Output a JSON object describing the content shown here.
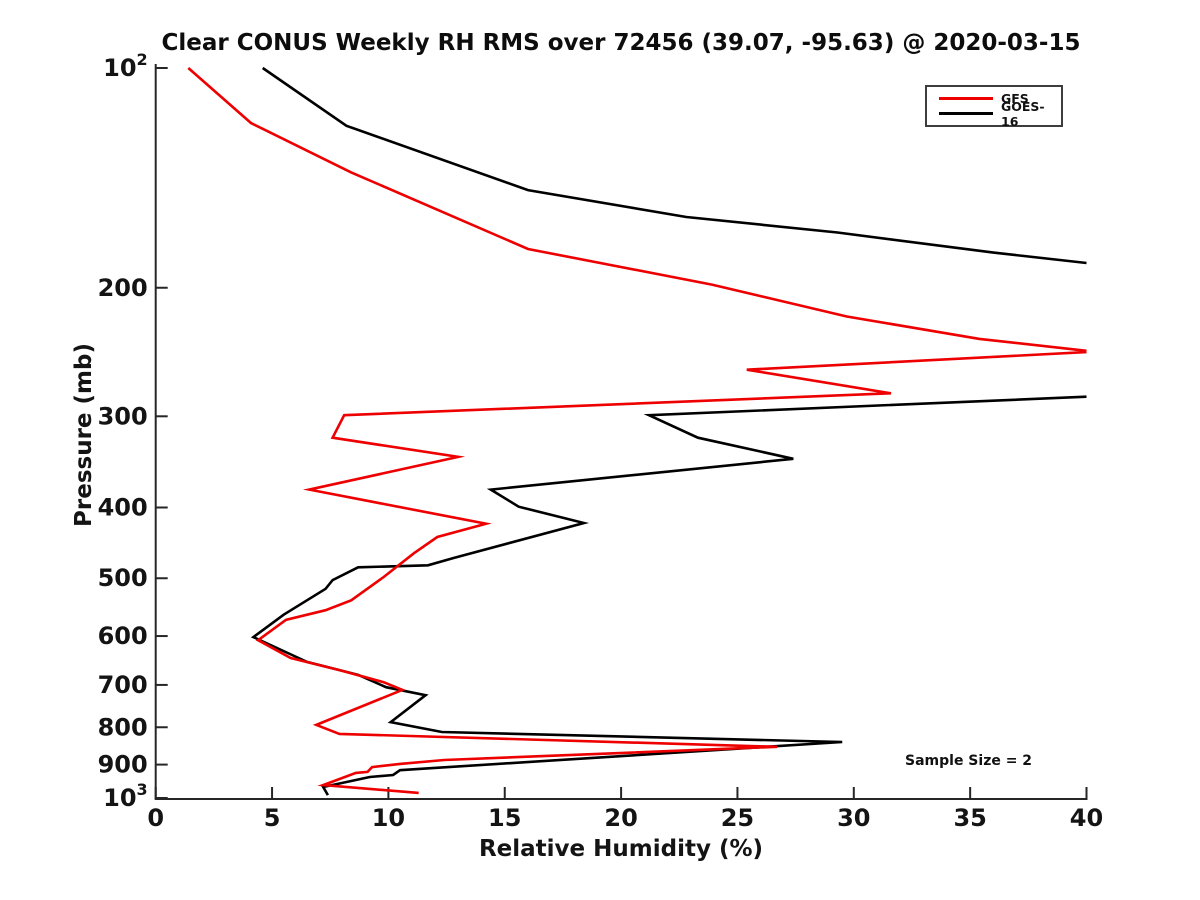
{
  "title": "Clear CONUS Weekly RH RMS over 72456 (39.07, -95.63) @ 2020-03-15",
  "annotations": {
    "sample_size": "Sample Size = 2"
  },
  "legend": {
    "items": [
      {
        "id": "gfs",
        "label": "GFS",
        "color": "#ee0000"
      },
      {
        "id": "goes16",
        "label": "GOES-16",
        "color": "#000000"
      }
    ]
  },
  "colors": {
    "gfs_line": "#ee0000",
    "goes16_line": "#000000",
    "axis": "#262626",
    "background": "#ffffff"
  },
  "chart_data": {
    "type": "line",
    "title": "Clear CONUS Weekly RH RMS over 72456 (39.07, -95.63) @ 2020-03-15",
    "xlabel": "Relative Humidity (%)",
    "ylabel": "Pressure (mb)",
    "xlim": [
      0,
      40
    ],
    "ylim": [
      100,
      1000
    ],
    "yscale": "log10",
    "y_inverted": true,
    "grid": false,
    "legend_position": "upper right",
    "xticks": [
      0,
      5,
      10,
      15,
      20,
      25,
      30,
      35,
      40
    ],
    "yticks": [
      {
        "value": 100,
        "base": "10",
        "exp": "2"
      },
      {
        "value": 200,
        "label": "200"
      },
      {
        "value": 300,
        "label": "300"
      },
      {
        "value": 400,
        "label": "400"
      },
      {
        "value": 500,
        "label": "500"
      },
      {
        "value": 600,
        "label": "600"
      },
      {
        "value": 700,
        "label": "700"
      },
      {
        "value": 800,
        "label": "800"
      },
      {
        "value": 900,
        "label": "900"
      },
      {
        "value": 1000,
        "base": "10",
        "exp": "3"
      }
    ],
    "point_format": "[pressure_mb, rh_percent]",
    "clipping_note": "Both curves exceed RH 40% between their segment breaks and are clipped at the right axis limit.",
    "series": [
      {
        "name": "GOES-16",
        "color": "#000000",
        "segments": [
          [
            [
              100,
              4.6
            ],
            [
              120,
              8.2
            ],
            [
              147,
              16.0
            ],
            [
              160,
              22.8
            ],
            [
              168,
              29.3
            ],
            [
              179,
              36.0
            ],
            [
              185,
              40.0
            ]
          ],
          [
            [
              282,
              40.0
            ],
            [
              299,
              21.2
            ],
            [
              321,
              23.3
            ],
            [
              343,
              27.4
            ],
            [
              378,
              14.4
            ],
            [
              399,
              15.6
            ],
            [
              420,
              18.4
            ],
            [
              469,
              12.8
            ],
            [
              480,
              11.7
            ],
            [
              483,
              8.7
            ],
            [
              503,
              7.6
            ],
            [
              517,
              7.3
            ],
            [
              561,
              5.5
            ],
            [
              602,
              4.2
            ],
            [
              651,
              6.5
            ],
            [
              678,
              8.7
            ],
            [
              705,
              9.9
            ],
            [
              723,
              11.6
            ],
            [
              787,
              10.1
            ],
            [
              812,
              12.3
            ],
            [
              838,
              29.5
            ],
            [
              910,
              11.9
            ],
            [
              916,
              10.5
            ],
            [
              930,
              10.2
            ],
            [
              936,
              9.2
            ],
            [
              966,
              7.2
            ],
            [
              991,
              7.4
            ]
          ]
        ]
      },
      {
        "name": "GFS",
        "color": "#ee0000",
        "segments": [
          [
            [
              100,
              1.4
            ],
            [
              119,
              4.1
            ],
            [
              139,
              8.4
            ],
            [
              177,
              16.0
            ],
            [
              198,
              23.9
            ],
            [
              219,
              29.7
            ],
            [
              235,
              35.4
            ],
            [
              244,
              40.0
            ]
          ],
          [
            [
              245,
              40.0
            ],
            [
              259,
              25.4
            ],
            [
              279,
              31.6
            ],
            [
              299,
              8.1
            ],
            [
              321,
              7.6
            ],
            [
              341,
              13.0
            ],
            [
              378,
              6.6
            ],
            [
              421,
              14.2
            ],
            [
              439,
              12.1
            ],
            [
              462,
              11.1
            ],
            [
              498,
              9.8
            ],
            [
              536,
              8.4
            ],
            [
              553,
              7.3
            ],
            [
              570,
              5.6
            ],
            [
              608,
              4.4
            ],
            [
              643,
              5.8
            ],
            [
              668,
              7.9
            ],
            [
              694,
              9.8
            ],
            [
              711,
              10.6
            ],
            [
              794,
              6.9
            ],
            [
              817,
              7.9
            ],
            [
              851,
              26.7
            ],
            [
              887,
              12.4
            ],
            [
              898,
              10.5
            ],
            [
              907,
              9.3
            ],
            [
              921,
              9.1
            ],
            [
              924,
              8.6
            ],
            [
              960,
              7.2
            ],
            [
              984,
              11.3
            ]
          ]
        ]
      }
    ]
  }
}
